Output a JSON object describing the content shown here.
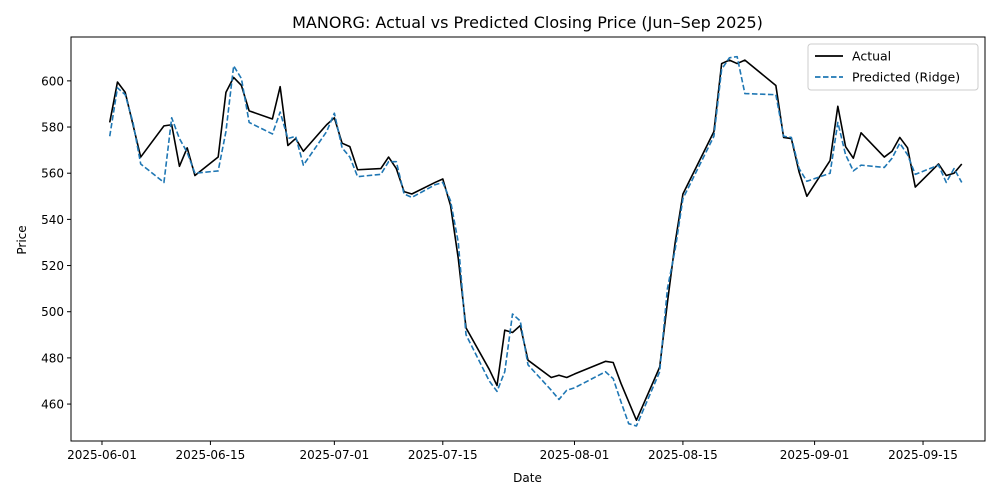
{
  "chart_data": {
    "type": "line",
    "title": "MANORG: Actual vs Predicted Closing Price (Jun–Sep 2025)",
    "xlabel": "Date",
    "ylabel": "Price",
    "x_range": [
      "2025-05-28",
      "2025-09-23"
    ],
    "ylim": [
      444,
      619
    ],
    "x_ticks": [
      "2025-06-01",
      "2025-06-15",
      "2025-07-01",
      "2025-07-15",
      "2025-08-01",
      "2025-08-15",
      "2025-09-01",
      "2025-09-15"
    ],
    "y_ticks": [
      460,
      480,
      500,
      520,
      540,
      560,
      580,
      600
    ],
    "grid": false,
    "legend_position": "top-right",
    "series": [
      {
        "name": "Actual",
        "color": "#000000",
        "style": "solid",
        "points": [
          [
            "2025-06-02",
            582
          ],
          [
            "2025-06-03",
            599.5
          ],
          [
            "2025-06-04",
            595
          ],
          [
            "2025-06-05",
            581
          ],
          [
            "2025-06-06",
            567
          ],
          [
            "2025-06-09",
            580.5
          ],
          [
            "2025-06-10",
            581
          ],
          [
            "2025-06-11",
            563
          ],
          [
            "2025-06-12",
            571
          ],
          [
            "2025-06-13",
            559
          ],
          [
            "2025-06-16",
            567
          ],
          [
            "2025-06-17",
            595
          ],
          [
            "2025-06-18",
            601.5
          ],
          [
            "2025-06-19",
            598
          ],
          [
            "2025-06-20",
            587
          ],
          [
            "2025-06-23",
            583.5
          ],
          [
            "2025-06-24",
            597.5
          ],
          [
            "2025-06-25",
            572
          ],
          [
            "2025-06-26",
            575
          ],
          [
            "2025-06-27",
            569.5
          ],
          [
            "2025-06-30",
            581
          ],
          [
            "2025-07-01",
            584
          ],
          [
            "2025-07-02",
            573
          ],
          [
            "2025-07-03",
            571.5
          ],
          [
            "2025-07-04",
            561.5
          ],
          [
            "2025-07-07",
            562
          ],
          [
            "2025-07-08",
            567
          ],
          [
            "2025-07-09",
            562
          ],
          [
            "2025-07-10",
            552
          ],
          [
            "2025-07-11",
            551
          ],
          [
            "2025-07-14",
            556
          ],
          [
            "2025-07-15",
            557.5
          ],
          [
            "2025-07-16",
            546
          ],
          [
            "2025-07-17",
            523
          ],
          [
            "2025-07-18",
            493
          ],
          [
            "2025-07-21",
            475
          ],
          [
            "2025-07-22",
            468
          ],
          [
            "2025-07-23",
            492
          ],
          [
            "2025-07-24",
            491
          ],
          [
            "2025-07-25",
            494
          ],
          [
            "2025-07-26",
            479
          ],
          [
            "2025-07-29",
            471.5
          ],
          [
            "2025-07-30",
            472.5
          ],
          [
            "2025-07-31",
            471.5
          ],
          [
            "2025-08-01",
            473
          ],
          [
            "2025-08-05",
            478.5
          ],
          [
            "2025-08-06",
            478
          ],
          [
            "2025-08-07",
            469
          ],
          [
            "2025-08-09",
            453
          ],
          [
            "2025-08-12",
            476
          ],
          [
            "2025-08-13",
            504
          ],
          [
            "2025-08-14",
            530
          ],
          [
            "2025-08-15",
            551
          ],
          [
            "2025-08-19",
            578
          ],
          [
            "2025-08-20",
            607.5
          ],
          [
            "2025-08-21",
            609
          ],
          [
            "2025-08-22",
            607.5
          ],
          [
            "2025-08-23",
            609
          ],
          [
            "2025-08-27",
            598
          ],
          [
            "2025-08-28",
            575.5
          ],
          [
            "2025-08-29",
            575
          ],
          [
            "2025-08-30",
            560.5
          ],
          [
            "2025-08-31",
            550
          ],
          [
            "2025-09-03",
            565.5
          ],
          [
            "2025-09-04",
            589
          ],
          [
            "2025-09-05",
            571.5
          ],
          [
            "2025-09-06",
            566.5
          ],
          [
            "2025-09-07",
            577.5
          ],
          [
            "2025-09-10",
            567
          ],
          [
            "2025-09-11",
            569.5
          ],
          [
            "2025-09-12",
            575.5
          ],
          [
            "2025-09-13",
            571
          ],
          [
            "2025-09-14",
            554
          ],
          [
            "2025-09-17",
            564
          ],
          [
            "2025-09-18",
            559
          ],
          [
            "2025-09-19",
            560
          ],
          [
            "2025-09-20",
            564
          ]
        ]
      },
      {
        "name": "Predicted (Ridge)",
        "color": "#1f77b4",
        "style": "dashed",
        "points": [
          [
            "2025-06-02",
            576
          ],
          [
            "2025-06-03",
            597
          ],
          [
            "2025-06-04",
            594
          ],
          [
            "2025-06-05",
            582
          ],
          [
            "2025-06-06",
            564
          ],
          [
            "2025-06-09",
            556
          ],
          [
            "2025-06-10",
            584
          ],
          [
            "2025-06-11",
            575
          ],
          [
            "2025-06-12",
            569
          ],
          [
            "2025-06-13",
            560
          ],
          [
            "2025-06-16",
            561
          ],
          [
            "2025-06-17",
            578
          ],
          [
            "2025-06-18",
            606.5
          ],
          [
            "2025-06-19",
            601
          ],
          [
            "2025-06-20",
            582
          ],
          [
            "2025-06-23",
            577
          ],
          [
            "2025-06-24",
            586.5
          ],
          [
            "2025-06-25",
            575
          ],
          [
            "2025-06-26",
            576
          ],
          [
            "2025-06-27",
            563.5
          ],
          [
            "2025-06-30",
            578
          ],
          [
            "2025-07-01",
            586
          ],
          [
            "2025-07-02",
            571
          ],
          [
            "2025-07-03",
            567
          ],
          [
            "2025-07-04",
            558.5
          ],
          [
            "2025-07-07",
            559.5
          ],
          [
            "2025-07-08",
            565
          ],
          [
            "2025-07-09",
            565
          ],
          [
            "2025-07-10",
            551
          ],
          [
            "2025-07-11",
            549.5
          ],
          [
            "2025-07-14",
            555
          ],
          [
            "2025-07-15",
            556
          ],
          [
            "2025-07-16",
            548
          ],
          [
            "2025-07-17",
            530
          ],
          [
            "2025-07-18",
            490
          ],
          [
            "2025-07-21",
            470
          ],
          [
            "2025-07-22",
            465.5
          ],
          [
            "2025-07-23",
            474
          ],
          [
            "2025-07-24",
            499
          ],
          [
            "2025-07-25",
            496
          ],
          [
            "2025-07-26",
            477
          ],
          [
            "2025-07-29",
            466
          ],
          [
            "2025-07-30",
            462
          ],
          [
            "2025-07-31",
            466
          ],
          [
            "2025-08-01",
            467
          ],
          [
            "2025-08-05",
            474
          ],
          [
            "2025-08-06",
            471
          ],
          [
            "2025-08-07",
            461
          ],
          [
            "2025-08-08",
            451.5
          ],
          [
            "2025-08-09",
            450.5
          ],
          [
            "2025-08-12",
            474
          ],
          [
            "2025-08-13",
            510
          ],
          [
            "2025-08-14",
            527
          ],
          [
            "2025-08-15",
            549
          ],
          [
            "2025-08-19",
            576
          ],
          [
            "2025-08-20",
            605
          ],
          [
            "2025-08-21",
            610
          ],
          [
            "2025-08-22",
            610.5
          ],
          [
            "2025-08-23",
            594.5
          ],
          [
            "2025-08-27",
            594
          ],
          [
            "2025-08-28",
            576
          ],
          [
            "2025-08-29",
            575.5
          ],
          [
            "2025-08-30",
            562
          ],
          [
            "2025-08-31",
            556.5
          ],
          [
            "2025-09-03",
            560
          ],
          [
            "2025-09-04",
            582
          ],
          [
            "2025-09-05",
            568
          ],
          [
            "2025-09-06",
            561
          ],
          [
            "2025-09-07",
            563.5
          ],
          [
            "2025-09-10",
            562.5
          ],
          [
            "2025-09-11",
            566.5
          ],
          [
            "2025-09-12",
            573
          ],
          [
            "2025-09-13",
            568
          ],
          [
            "2025-09-14",
            559.5
          ],
          [
            "2025-09-17",
            563.5
          ],
          [
            "2025-09-18",
            556
          ],
          [
            "2025-09-19",
            562
          ],
          [
            "2025-09-20",
            556
          ]
        ]
      }
    ]
  }
}
